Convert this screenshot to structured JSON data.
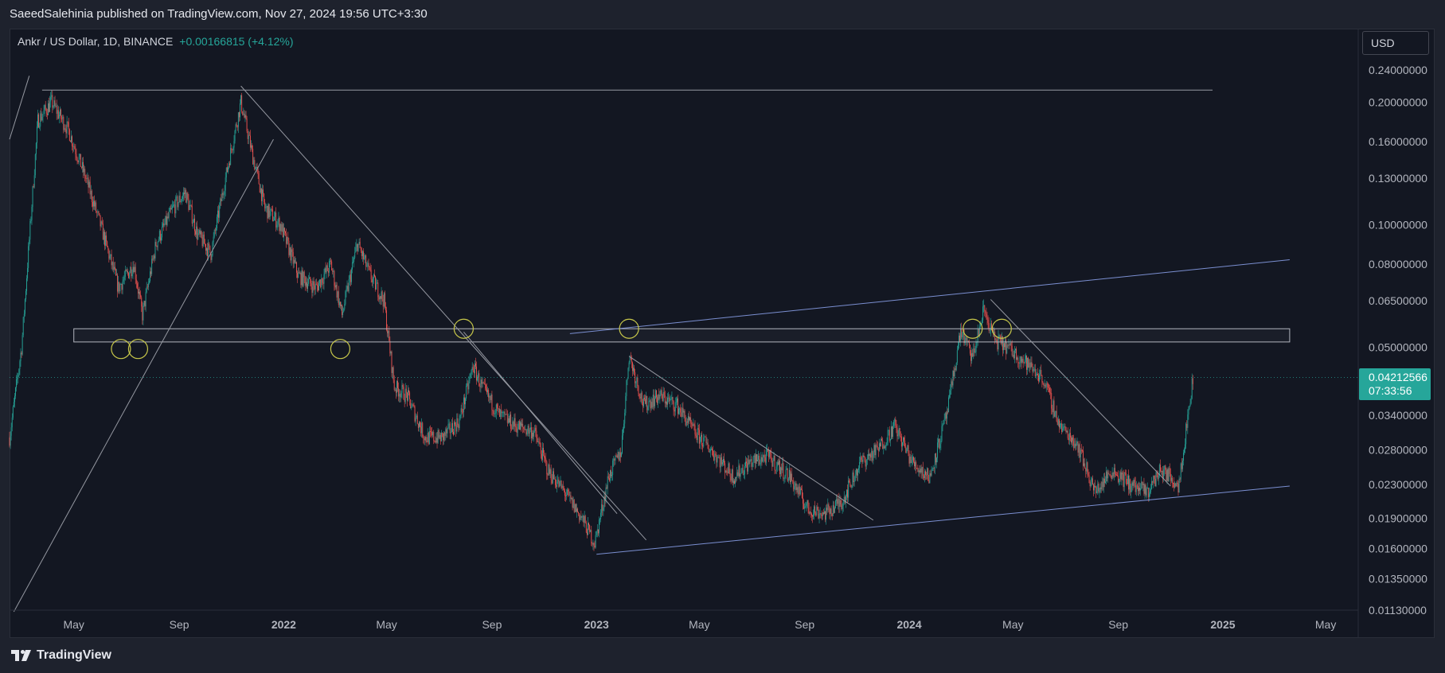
{
  "header": {
    "publish_info": "SaeedSalehinia published on TradingView.com, Nov 27, 2024 19:56 UTC+3:30"
  },
  "legend": {
    "symbol": "Ankr / US Dollar, 1D, BINANCE",
    "change": "+0.00166815 (+4.12%)"
  },
  "price_scale": {
    "currency_button": "USD",
    "last_price": "0.04212566",
    "countdown": "07:33:56"
  },
  "footer": {
    "brand": "TradingView"
  },
  "colors": {
    "background": "#131722",
    "up": "#26a69a",
    "down": "#ef5350",
    "trendline": "#9598a1",
    "channel": "#7b8fd1",
    "marker": "#c8c84a"
  },
  "chart_data": {
    "type": "candlestick",
    "title": "Ankr / US Dollar, 1D, BINANCE",
    "y_scale": "log",
    "ylim": [
      0.0113,
      0.26
    ],
    "y_ticks": [
      "0.24000000",
      "0.20000000",
      "0.16000000",
      "0.13000000",
      "0.10000000",
      "0.08000000",
      "0.06500000",
      "0.05000000",
      "0.03400000",
      "0.02800000",
      "0.02300000",
      "0.01900000",
      "0.01600000",
      "0.01350000",
      "0.01130000"
    ],
    "x_ticks": [
      "May",
      "Sep",
      "2022",
      "May",
      "Sep",
      "2023",
      "May",
      "Sep",
      "2024",
      "May",
      "Sep",
      "2025",
      "May"
    ],
    "x_range": [
      "2021-02-15",
      "2025-06-08"
    ],
    "price_path": [
      [
        "2021-02-15",
        0.03
      ],
      [
        "2021-03-01",
        0.05
      ],
      [
        "2021-03-20",
        0.18
      ],
      [
        "2021-04-05",
        0.2
      ],
      [
        "2021-04-25",
        0.17
      ],
      [
        "2021-05-15",
        0.13
      ],
      [
        "2021-06-01",
        0.1
      ],
      [
        "2021-06-22",
        0.07
      ],
      [
        "2021-07-10",
        0.08
      ],
      [
        "2021-07-20",
        0.06
      ],
      [
        "2021-08-05",
        0.09
      ],
      [
        "2021-08-25",
        0.11
      ],
      [
        "2021-09-08",
        0.12
      ],
      [
        "2021-09-22",
        0.095
      ],
      [
        "2021-10-08",
        0.085
      ],
      [
        "2021-10-25",
        0.13
      ],
      [
        "2021-11-12",
        0.2
      ],
      [
        "2021-11-25",
        0.15
      ],
      [
        "2021-12-10",
        0.11
      ],
      [
        "2021-12-28",
        0.1
      ],
      [
        "2022-01-18",
        0.075
      ],
      [
        "2022-02-08",
        0.07
      ],
      [
        "2022-02-25",
        0.08
      ],
      [
        "2022-03-10",
        0.06
      ],
      [
        "2022-03-28",
        0.09
      ],
      [
        "2022-04-12",
        0.075
      ],
      [
        "2022-04-28",
        0.065
      ],
      [
        "2022-05-10",
        0.04
      ],
      [
        "2022-05-25",
        0.038
      ],
      [
        "2022-06-15",
        0.03
      ],
      [
        "2022-07-05",
        0.03
      ],
      [
        "2022-07-25",
        0.033
      ],
      [
        "2022-08-10",
        0.045
      ],
      [
        "2022-08-20",
        0.04
      ],
      [
        "2022-09-10",
        0.034
      ],
      [
        "2022-09-30",
        0.032
      ],
      [
        "2022-10-20",
        0.031
      ],
      [
        "2022-11-05",
        0.025
      ],
      [
        "2022-11-25",
        0.022
      ],
      [
        "2022-12-15",
        0.019
      ],
      [
        "2022-12-30",
        0.0165
      ],
      [
        "2023-01-15",
        0.024
      ],
      [
        "2023-01-30",
        0.028
      ],
      [
        "2023-02-08",
        0.048
      ],
      [
        "2023-02-25",
        0.036
      ],
      [
        "2023-03-15",
        0.038
      ],
      [
        "2023-04-05",
        0.036
      ],
      [
        "2023-04-25",
        0.031
      ],
      [
        "2023-05-15",
        0.028
      ],
      [
        "2023-06-10",
        0.024
      ],
      [
        "2023-06-28",
        0.026
      ],
      [
        "2023-07-20",
        0.027
      ],
      [
        "2023-08-15",
        0.024
      ],
      [
        "2023-09-05",
        0.02
      ],
      [
        "2023-09-25",
        0.0195
      ],
      [
        "2023-10-15",
        0.021
      ],
      [
        "2023-11-05",
        0.026
      ],
      [
        "2023-11-25",
        0.028
      ],
      [
        "2023-12-15",
        0.032
      ],
      [
        "2024-01-05",
        0.026
      ],
      [
        "2024-01-25",
        0.024
      ],
      [
        "2024-02-15",
        0.035
      ],
      [
        "2024-03-01",
        0.055
      ],
      [
        "2024-03-15",
        0.047
      ],
      [
        "2024-03-28",
        0.062
      ],
      [
        "2024-04-10",
        0.052
      ],
      [
        "2024-04-25",
        0.05
      ],
      [
        "2024-05-15",
        0.046
      ],
      [
        "2024-06-05",
        0.042
      ],
      [
        "2024-06-25",
        0.032
      ],
      [
        "2024-07-15",
        0.029
      ],
      [
        "2024-08-05",
        0.022
      ],
      [
        "2024-08-25",
        0.025
      ],
      [
        "2024-09-15",
        0.023
      ],
      [
        "2024-10-05",
        0.022
      ],
      [
        "2024-10-20",
        0.025
      ],
      [
        "2024-11-01",
        0.024
      ],
      [
        "2024-11-10",
        0.023
      ],
      [
        "2024-11-18",
        0.03
      ],
      [
        "2024-11-27",
        0.042
      ]
    ],
    "drawings": {
      "horizontal_top": {
        "from": "2021-03-25",
        "to": "2024-12-20",
        "price": 0.214
      },
      "support_zone": {
        "from": "2021-05-01",
        "to": "2025-03-20",
        "upper": 0.0555,
        "lower": 0.0515
      },
      "circles": [
        {
          "date": "2021-06-25",
          "price": 0.0495
        },
        {
          "date": "2021-07-15",
          "price": 0.0495
        },
        {
          "date": "2022-03-08",
          "price": 0.0495
        },
        {
          "date": "2022-07-30",
          "price": 0.0555
        },
        {
          "date": "2023-02-08",
          "price": 0.0555
        },
        {
          "date": "2024-03-15",
          "price": 0.0555
        },
        {
          "date": "2024-04-18",
          "price": 0.0555
        }
      ],
      "trendlines": [
        {
          "p1": [
            "2021-02-15",
            0.162
          ],
          "p2": [
            "2021-03-10",
            0.232
          ],
          "style": "grey"
        },
        {
          "p1": [
            "2021-02-20",
            0.0112
          ],
          "p2": [
            "2021-12-20",
            0.162
          ],
          "style": "grey"
        },
        {
          "p1": [
            "2021-11-12",
            0.219
          ],
          "p2": [
            "2023-02-28",
            0.0168
          ],
          "style": "grey"
        },
        {
          "p1": [
            "2022-07-30",
            0.0545
          ],
          "p2": [
            "2023-01-25",
            0.0195
          ],
          "style": "grey"
        },
        {
          "p1": [
            "2023-02-08",
            0.0475
          ],
          "p2": [
            "2023-11-20",
            0.0188
          ],
          "style": "grey"
        },
        {
          "p1": [
            "2024-04-05",
            0.0655
          ],
          "p2": [
            "2024-11-01",
            0.0228
          ],
          "style": "grey"
        },
        {
          "p1": [
            "2023-01-01",
            0.0155
          ],
          "p2": [
            "2025-03-20",
            0.0228
          ],
          "style": "channel"
        },
        {
          "p1": [
            "2022-12-01",
            0.054
          ],
          "p2": [
            "2025-03-20",
            0.082
          ],
          "style": "channel"
        }
      ]
    }
  }
}
